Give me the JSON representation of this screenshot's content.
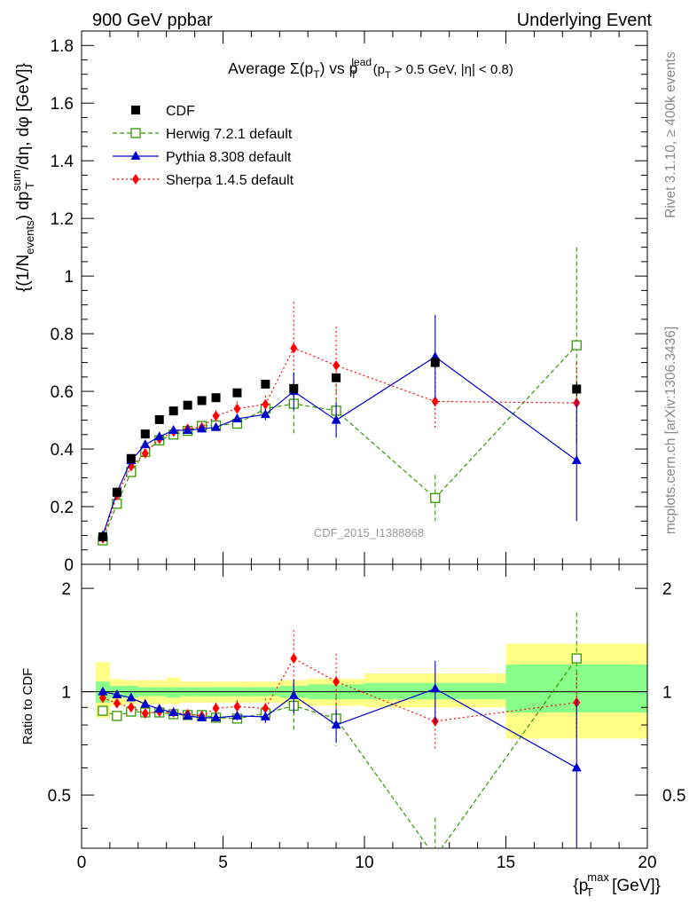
{
  "header": {
    "left": "900 GeV ppbar",
    "right": "Underlying Event"
  },
  "side_labels": {
    "rivet": "Rivet 3.1.10, ≥ 400k events",
    "mcplots": "mcplots.cern.ch [arXiv:1306.3436]"
  },
  "plot_title": {
    "prefix": "Average Σ(p",
    "sub_T": "T",
    "mid": ") vs p",
    "sup_lead": "lead",
    "sub_T2": "T",
    "cut_open": " (p",
    "sub_T3": "T",
    "cut_rest": " > 0.5 GeV, |η| < 0.8)"
  },
  "watermark": "CDF_2015_I1388868",
  "legend": [
    {
      "label": "CDF",
      "style": "data"
    },
    {
      "label": "Herwig 7.2.1 default",
      "style": "herwig"
    },
    {
      "label": "Pythia 8.308 default",
      "style": "pythia"
    },
    {
      "label": "Sherpa 1.4.5 default",
      "style": "sherpa"
    }
  ],
  "ylabel_main": {
    "a": "{(1/N",
    "a_sub": "events",
    "b": ") dp",
    "b_sup": "sum",
    "b_sub": "T",
    "c": "/dη, dφ [GeV]}"
  },
  "ylabel_ratio": "Ratio to CDF",
  "xlabel": {
    "a": "{p",
    "sup": "max",
    "sub": "T",
    "b": " [GeV]}"
  },
  "colors": {
    "data": "#000000",
    "herwig": "#339900",
    "pythia": "#0000cc",
    "sherpa": "#ff0000",
    "band_outer": "#ffff88",
    "band_inner": "#88ff88",
    "side_text": "#888888",
    "watermark": "#999999"
  },
  "chart_data": {
    "type": "line",
    "x_range": [
      0,
      20
    ],
    "main_y_range": [
      0,
      1.85
    ],
    "ratio_y_range": [
      0.35,
      2.35
    ],
    "ratio_log_scale": true,
    "x_ticks": [
      "0",
      "5",
      "10",
      "15",
      "20"
    ],
    "main_y_ticks": [
      "0",
      "0.2",
      "0.4",
      "0.6",
      "0.8",
      "1",
      "1.2",
      "1.4",
      "1.6",
      "1.8"
    ],
    "ratio_y_ticks": [
      "0.5",
      "1",
      "2"
    ],
    "bin_edges": [
      0.5,
      1.0,
      1.5,
      2.0,
      2.5,
      3.0,
      3.5,
      4.0,
      4.5,
      5.0,
      6.0,
      7.0,
      8.0,
      10.0,
      15.0,
      20.0
    ],
    "x": [
      0.75,
      1.25,
      1.75,
      2.25,
      2.75,
      3.25,
      3.75,
      4.25,
      4.75,
      5.5,
      6.5,
      7.5,
      9.0,
      12.5,
      17.5
    ],
    "data_uncertainty_bands": {
      "inner": [
        [
          0.93,
          1.07
        ],
        [
          0.96,
          1.04
        ],
        [
          0.96,
          1.04
        ],
        [
          0.97,
          1.03
        ],
        [
          0.97,
          1.03
        ],
        [
          0.96,
          1.03
        ],
        [
          0.97,
          1.03
        ],
        [
          0.97,
          1.03
        ],
        [
          0.97,
          1.03
        ],
        [
          0.97,
          1.03
        ],
        [
          0.97,
          1.03
        ],
        [
          0.96,
          1.04
        ],
        [
          0.95,
          1.05
        ],
        [
          0.95,
          1.06
        ],
        [
          0.87,
          1.2
        ]
      ],
      "outer": [
        [
          0.84,
          1.22
        ],
        [
          0.91,
          1.09
        ],
        [
          0.92,
          1.08
        ],
        [
          0.92,
          1.08
        ],
        [
          0.92,
          1.08
        ],
        [
          0.92,
          1.1
        ],
        [
          0.93,
          1.07
        ],
        [
          0.93,
          1.07
        ],
        [
          0.93,
          1.07
        ],
        [
          0.93,
          1.07
        ],
        [
          0.93,
          1.07
        ],
        [
          0.92,
          1.08
        ],
        [
          0.91,
          1.09
        ],
        [
          0.9,
          1.13
        ],
        [
          0.73,
          1.38
        ]
      ]
    },
    "series": [
      {
        "name": "CDF",
        "key": "data",
        "values": [
          0.095,
          0.25,
          0.367,
          0.452,
          0.502,
          0.532,
          0.552,
          0.568,
          0.578,
          0.595,
          0.625,
          0.61,
          0.647,
          0.7,
          0.608
        ],
        "errors": [
          0.005,
          0.008,
          0.008,
          0.008,
          0.008,
          0.008,
          0.008,
          0.008,
          0.008,
          0.009,
          0.01,
          0.012,
          0.014,
          0.02,
          0.025
        ],
        "ratio": [
          1,
          1,
          1,
          1,
          1,
          1,
          1,
          1,
          1,
          1,
          1,
          1,
          1,
          1,
          1
        ]
      },
      {
        "name": "Herwig 7.2.1 default",
        "key": "herwig",
        "values": [
          0.083,
          0.21,
          0.32,
          0.39,
          0.43,
          0.45,
          0.463,
          0.48,
          0.482,
          0.488,
          0.54,
          0.557,
          0.533,
          0.23,
          0.76
        ],
        "errors": [
          0.004,
          0.006,
          0.008,
          0.008,
          0.009,
          0.009,
          0.01,
          0.012,
          0.012,
          0.015,
          0.02,
          0.11,
          0.095,
          0.08,
          0.34
        ],
        "ratio": [
          0.88,
          0.85,
          0.875,
          0.87,
          0.87,
          0.86,
          0.855,
          0.855,
          0.84,
          0.835,
          0.865,
          0.91,
          0.835,
          0.33,
          1.25
        ],
        "ratio_errors": [
          0.03,
          0.025,
          0.025,
          0.02,
          0.02,
          0.02,
          0.02,
          0.025,
          0.025,
          0.025,
          0.03,
          0.15,
          0.14,
          0.1,
          0.45
        ]
      },
      {
        "name": "Pythia 8.308 default",
        "key": "pythia",
        "values": [
          0.1,
          0.25,
          0.36,
          0.415,
          0.443,
          0.465,
          0.465,
          0.47,
          0.475,
          0.505,
          0.52,
          0.6,
          0.5,
          0.72,
          0.36
        ],
        "errors": [
          0.004,
          0.006,
          0.007,
          0.007,
          0.008,
          0.008,
          0.009,
          0.009,
          0.01,
          0.012,
          0.02,
          0.065,
          0.06,
          0.145,
          0.21
        ],
        "ratio": [
          1.0,
          0.98,
          0.96,
          0.92,
          0.89,
          0.87,
          0.85,
          0.84,
          0.84,
          0.85,
          0.845,
          0.975,
          0.8,
          1.02,
          0.6
        ],
        "ratio_errors": [
          0.02,
          0.02,
          0.015,
          0.015,
          0.015,
          0.015,
          0.015,
          0.02,
          0.02,
          0.025,
          0.035,
          0.11,
          0.09,
          0.21,
          0.35
        ]
      },
      {
        "name": "Sherpa 1.4.5 default",
        "key": "sherpa",
        "values": [
          0.09,
          0.24,
          0.34,
          0.385,
          0.435,
          0.46,
          0.47,
          0.475,
          0.515,
          0.54,
          0.555,
          0.75,
          0.69,
          0.565,
          0.56
        ],
        "errors": [
          0.004,
          0.006,
          0.008,
          0.009,
          0.01,
          0.012,
          0.014,
          0.016,
          0.02,
          0.025,
          0.03,
          0.16,
          0.135,
          0.1,
          0.14
        ],
        "ratio": [
          0.96,
          0.925,
          0.9,
          0.865,
          0.875,
          0.87,
          0.86,
          0.85,
          0.895,
          0.905,
          0.895,
          1.25,
          1.07,
          0.82,
          0.93
        ],
        "ratio_errors": [
          0.02,
          0.02,
          0.02,
          0.02,
          0.02,
          0.025,
          0.025,
          0.03,
          0.035,
          0.04,
          0.06,
          0.26,
          0.22,
          0.14,
          0.2
        ]
      }
    ]
  }
}
